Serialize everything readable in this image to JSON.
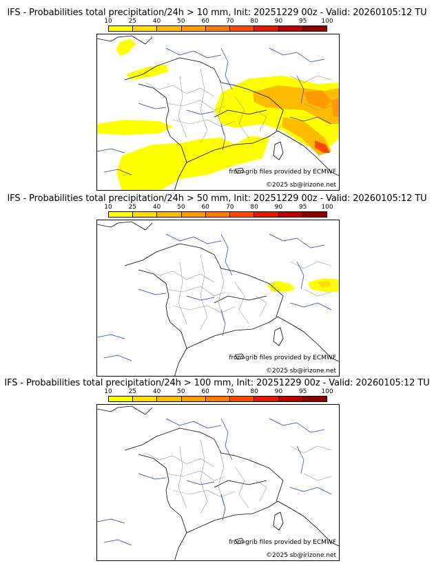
{
  "colorbar": {
    "ticks": [
      "10",
      "25",
      "40",
      "50",
      "60",
      "70",
      "80",
      "90",
      "95",
      "100"
    ],
    "colors": [
      "#ffff00",
      "#ffdd00",
      "#ffbb00",
      "#ff9a00",
      "#ff7800",
      "#ff4a00",
      "#e01a00",
      "#b80000",
      "#8c0000",
      "#5a0000"
    ]
  },
  "panels": [
    {
      "title": "IFS - Probabilities total precipitation/24h > 10 mm, Init: 20251229 00z - Valid: 20260105:12 TU",
      "threshold_mm": 10
    },
    {
      "title": "IFS - Probabilities total precipitation/24h > 50 mm, Init: 20251229 00z - Valid: 20260105:12 TU",
      "threshold_mm": 50
    },
    {
      "title": "IFS - Probabilities total precipitation/24h > 100 mm, Init: 20251229 00z - Valid: 20260105:12 TU",
      "threshold_mm": 100
    }
  ],
  "credits": {
    "grib": "from grib files provided by ECMWF",
    "site": "©2025 sb@irizone.net"
  }
}
